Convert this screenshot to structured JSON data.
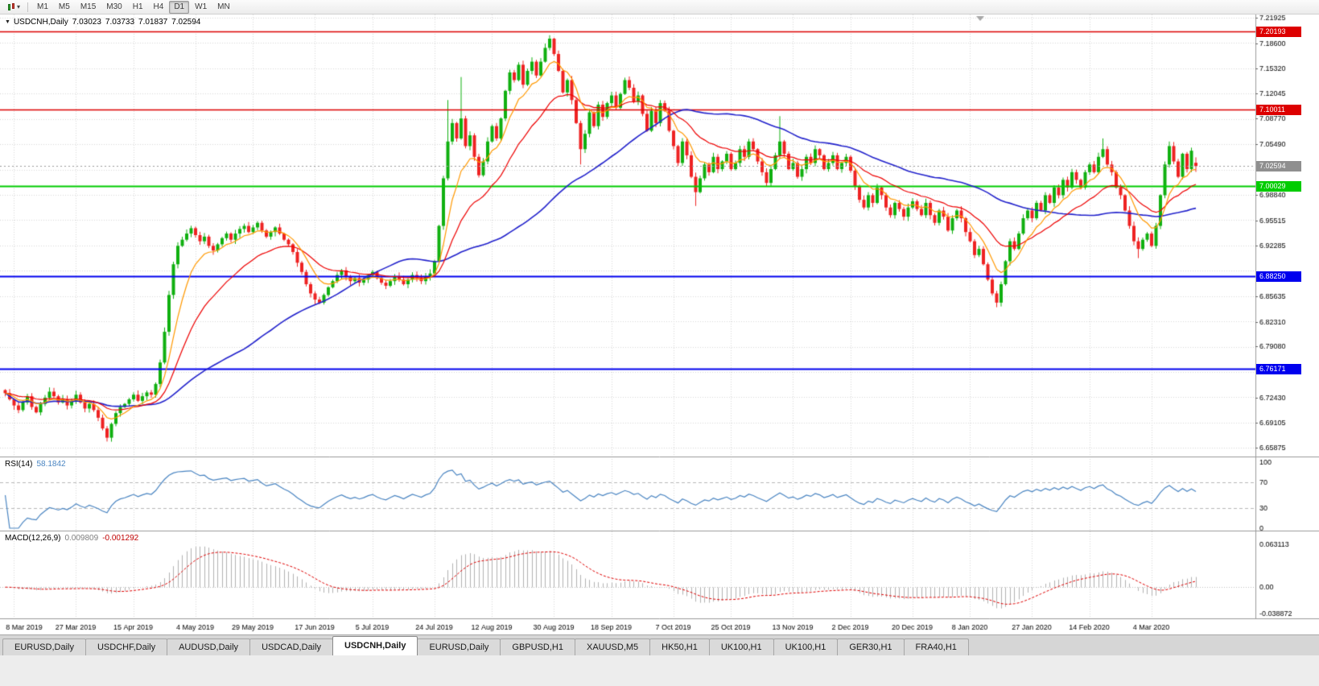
{
  "icons": {
    "chevron_down": "▾",
    "collapse_triangle": "▼"
  },
  "toolbar": {
    "timeframes": [
      "M1",
      "M5",
      "M15",
      "M30",
      "H1",
      "H4",
      "D1",
      "W1",
      "MN"
    ],
    "active_timeframe": "D1"
  },
  "chart_title": {
    "symbol": "USDCNH,Daily",
    "open": "7.03023",
    "high": "7.03733",
    "low": "7.01837",
    "close": "7.02594"
  },
  "rsi": {
    "label": "RSI(14)",
    "value": "58.1842",
    "levels": [
      "100",
      "70",
      "30",
      "0"
    ],
    "level_values": [
      100,
      70,
      30,
      0
    ],
    "dashed": [
      70,
      30
    ],
    "color": "#4a85c2"
  },
  "macd": {
    "label": "MACD(12,26,9)",
    "value_main": "0.009809",
    "value_signal": "-0.001292",
    "axis_labels": [
      "0.063113",
      "0.00",
      "-0.038872"
    ],
    "axis_values": [
      0.063113,
      0,
      -0.038872
    ],
    "range": [
      -0.038872,
      0.063113
    ],
    "hist_color": "#b2b2b2",
    "signal_color": "#e00000"
  },
  "tabs": [
    {
      "label": "EURUSD,Daily",
      "active": false
    },
    {
      "label": "USDCHF,Daily",
      "active": false
    },
    {
      "label": "AUDUSD,Daily",
      "active": false
    },
    {
      "label": "USDCAD,Daily",
      "active": false
    },
    {
      "label": "USDCNH,Daily",
      "active": true
    },
    {
      "label": "EURUSD,Daily",
      "active": false
    },
    {
      "label": "GBPUSD,H1",
      "active": false
    },
    {
      "label": "XAUUSD,M5",
      "active": false
    },
    {
      "label": "HK50,H1",
      "active": false
    },
    {
      "label": "UK100,H1",
      "active": false
    },
    {
      "label": "UK100,H1",
      "active": false
    },
    {
      "label": "GER30,H1",
      "active": false
    },
    {
      "label": "FRA40,H1",
      "active": false
    }
  ],
  "chart_data": {
    "type": "candlestick",
    "title": "USDCNH,Daily",
    "ylim": [
      6.6485,
      7.2235
    ],
    "grid": {
      "base": 6.65875,
      "step": 0.03297,
      "count": 18
    },
    "price_labels": [
      "7.21925",
      "7.18600",
      "7.15320",
      "7.12045",
      "7.08770",
      "7.05490",
      "6.98840",
      "6.95515",
      "6.92285",
      "6.85635",
      "6.82310",
      "6.79080",
      "6.72430",
      "6.69105",
      "6.65875"
    ],
    "date_labels": [
      {
        "text": "8 Mar 2019",
        "i": 2
      },
      {
        "text": "27 Mar 2019",
        "i": 16
      },
      {
        "text": "15 Apr 2019",
        "i": 29
      },
      {
        "text": "4 May 2019",
        "i": 43
      },
      {
        "text": "29 May 2019",
        "i": 56
      },
      {
        "text": "17 Jun 2019",
        "i": 70
      },
      {
        "text": "5 Jul 2019",
        "i": 83
      },
      {
        "text": "24 Jul 2019",
        "i": 97
      },
      {
        "text": "12 Aug 2019",
        "i": 110
      },
      {
        "text": "30 Aug 2019",
        "i": 124
      },
      {
        "text": "18 Sep 2019",
        "i": 137
      },
      {
        "text": "7 Oct 2019",
        "i": 151
      },
      {
        "text": "25 Oct 2019",
        "i": 164
      },
      {
        "text": "13 Nov 2019",
        "i": 178
      },
      {
        "text": "2 Dec 2019",
        "i": 191
      },
      {
        "text": "20 Dec 2019",
        "i": 205
      },
      {
        "text": "8 Jan 2020",
        "i": 218
      },
      {
        "text": "27 Jan 2020",
        "i": 232
      },
      {
        "text": "14 Feb 2020",
        "i": 245
      },
      {
        "text": "4 Mar 2020",
        "i": 259
      }
    ],
    "hlines": [
      {
        "price": 7.20193,
        "label": "7.20193",
        "color": "#dd0000",
        "width": 1.5
      },
      {
        "price": 7.10011,
        "label": "7.10011",
        "color": "#dd0000",
        "width": 1.5
      },
      {
        "price": 7.00029,
        "label": "7.00029",
        "color": "#00cc00",
        "width": 2
      },
      {
        "price": 6.8825,
        "label": "6.88250",
        "color": "#0000ee",
        "width": 2
      },
      {
        "price": 6.76171,
        "label": "6.76171",
        "color": "#0000ee",
        "width": 2
      }
    ],
    "current_price": {
      "price": 7.02594,
      "label": "7.02594",
      "line_color": "#999999",
      "badge_bg": "#8f8f8f"
    },
    "colors": {
      "up": "#10b010",
      "down": "#ee2222",
      "grid": "#d8d8d8",
      "ma_fast": "#ff9900",
      "ma_mid": "#ee0000",
      "ma_slow": "#2222cc"
    },
    "ma_periods": {
      "fast": 8,
      "mid": 21,
      "slow": 55
    },
    "closes": [
      6.73,
      6.722,
      6.714,
      6.708,
      6.718,
      6.726,
      6.712,
      6.705,
      6.716,
      6.724,
      6.732,
      6.726,
      6.718,
      6.722,
      6.714,
      6.72,
      6.728,
      6.718,
      6.71,
      6.716,
      6.708,
      6.698,
      6.684,
      6.672,
      6.69,
      6.704,
      6.712,
      6.716,
      6.722,
      6.728,
      6.72,
      6.726,
      6.731,
      6.728,
      6.742,
      6.77,
      6.81,
      6.858,
      6.898,
      6.922,
      6.93,
      6.938,
      6.945,
      6.936,
      6.928,
      6.934,
      6.922,
      6.916,
      6.924,
      6.932,
      6.938,
      6.93,
      6.938,
      6.944,
      6.948,
      6.94,
      6.946,
      6.952,
      6.942,
      6.934,
      6.94,
      6.946,
      6.938,
      6.93,
      6.924,
      6.914,
      6.9,
      6.888,
      6.872,
      6.86,
      6.852,
      6.848,
      6.858,
      6.868,
      6.876,
      6.884,
      6.89,
      6.882,
      6.876,
      6.88,
      6.874,
      6.878,
      6.884,
      6.888,
      6.88,
      6.874,
      6.87,
      6.876,
      6.882,
      6.878,
      6.872,
      6.878,
      6.884,
      6.88,
      6.876,
      6.882,
      6.886,
      6.902,
      6.948,
      7.01,
      7.058,
      7.082,
      7.062,
      7.088,
      7.052,
      7.066,
      7.038,
      7.014,
      7.032,
      7.058,
      7.078,
      7.062,
      7.088,
      7.124,
      7.148,
      7.138,
      7.158,
      7.132,
      7.15,
      7.162,
      7.144,
      7.162,
      7.18,
      7.192,
      7.172,
      7.15,
      7.122,
      7.138,
      7.112,
      7.082,
      7.048,
      7.068,
      7.096,
      7.078,
      7.106,
      7.09,
      7.108,
      7.118,
      7.102,
      7.12,
      7.138,
      7.128,
      7.11,
      7.118,
      7.094,
      7.072,
      7.098,
      7.082,
      7.108,
      7.098,
      7.072,
      7.052,
      7.03,
      7.058,
      7.04,
      7.012,
      6.992,
      7.01,
      7.028,
      7.018,
      7.038,
      7.022,
      7.032,
      7.042,
      7.022,
      7.03,
      7.048,
      7.038,
      7.058,
      7.048,
      7.032,
      7.018,
      7.004,
      7.022,
      7.04,
      7.058,
      7.042,
      7.022,
      7.03,
      7.012,
      7.022,
      7.038,
      7.03,
      7.048,
      7.04,
      7.022,
      7.03,
      7.04,
      7.022,
      7.03,
      7.038,
      7.02,
      7.0,
      6.982,
      6.972,
      6.988,
      6.978,
      6.998,
      6.988,
      6.972,
      6.962,
      6.978,
      6.97,
      6.96,
      6.972,
      6.98,
      6.97,
      6.962,
      6.978,
      6.962,
      6.952,
      6.968,
      6.96,
      6.942,
      6.958,
      6.968,
      6.958,
      6.94,
      6.928,
      6.91,
      6.918,
      6.898,
      6.878,
      6.86,
      6.848,
      6.872,
      6.902,
      6.928,
      6.918,
      6.938,
      6.958,
      6.968,
      6.958,
      6.978,
      6.968,
      6.988,
      6.978,
      6.998,
      6.988,
      7.008,
      6.998,
      7.018,
      7.008,
      6.998,
      7.018,
      7.028,
      7.018,
      7.038,
      7.048,
      7.028,
      7.018,
      6.998,
      6.988,
      6.968,
      6.948,
      6.928,
      6.918,
      6.93,
      6.938,
      6.922,
      6.948,
      6.988,
      7.028,
      7.052,
      7.032,
      7.012,
      7.042,
      7.022,
      7.046,
      7.026
    ],
    "spikes": [
      {
        "i": 23,
        "low": 6.667
      },
      {
        "i": 70,
        "low": 6.845
      },
      {
        "i": 100,
        "high": 7.112
      },
      {
        "i": 103,
        "high": 7.142
      },
      {
        "i": 123,
        "high": 7.1965
      },
      {
        "i": 130,
        "low": 7.028
      },
      {
        "i": 156,
        "low": 6.974
      },
      {
        "i": 175,
        "high": 7.091
      },
      {
        "i": 224,
        "low": 6.842
      },
      {
        "i": 248,
        "high": 7.062
      },
      {
        "i": 256,
        "low": 6.906
      },
      {
        "i": 263,
        "high": 7.058
      }
    ],
    "last_candle": {
      "open": 7.03023,
      "high": 7.03733,
      "low": 7.01837,
      "close": 7.02594
    }
  }
}
